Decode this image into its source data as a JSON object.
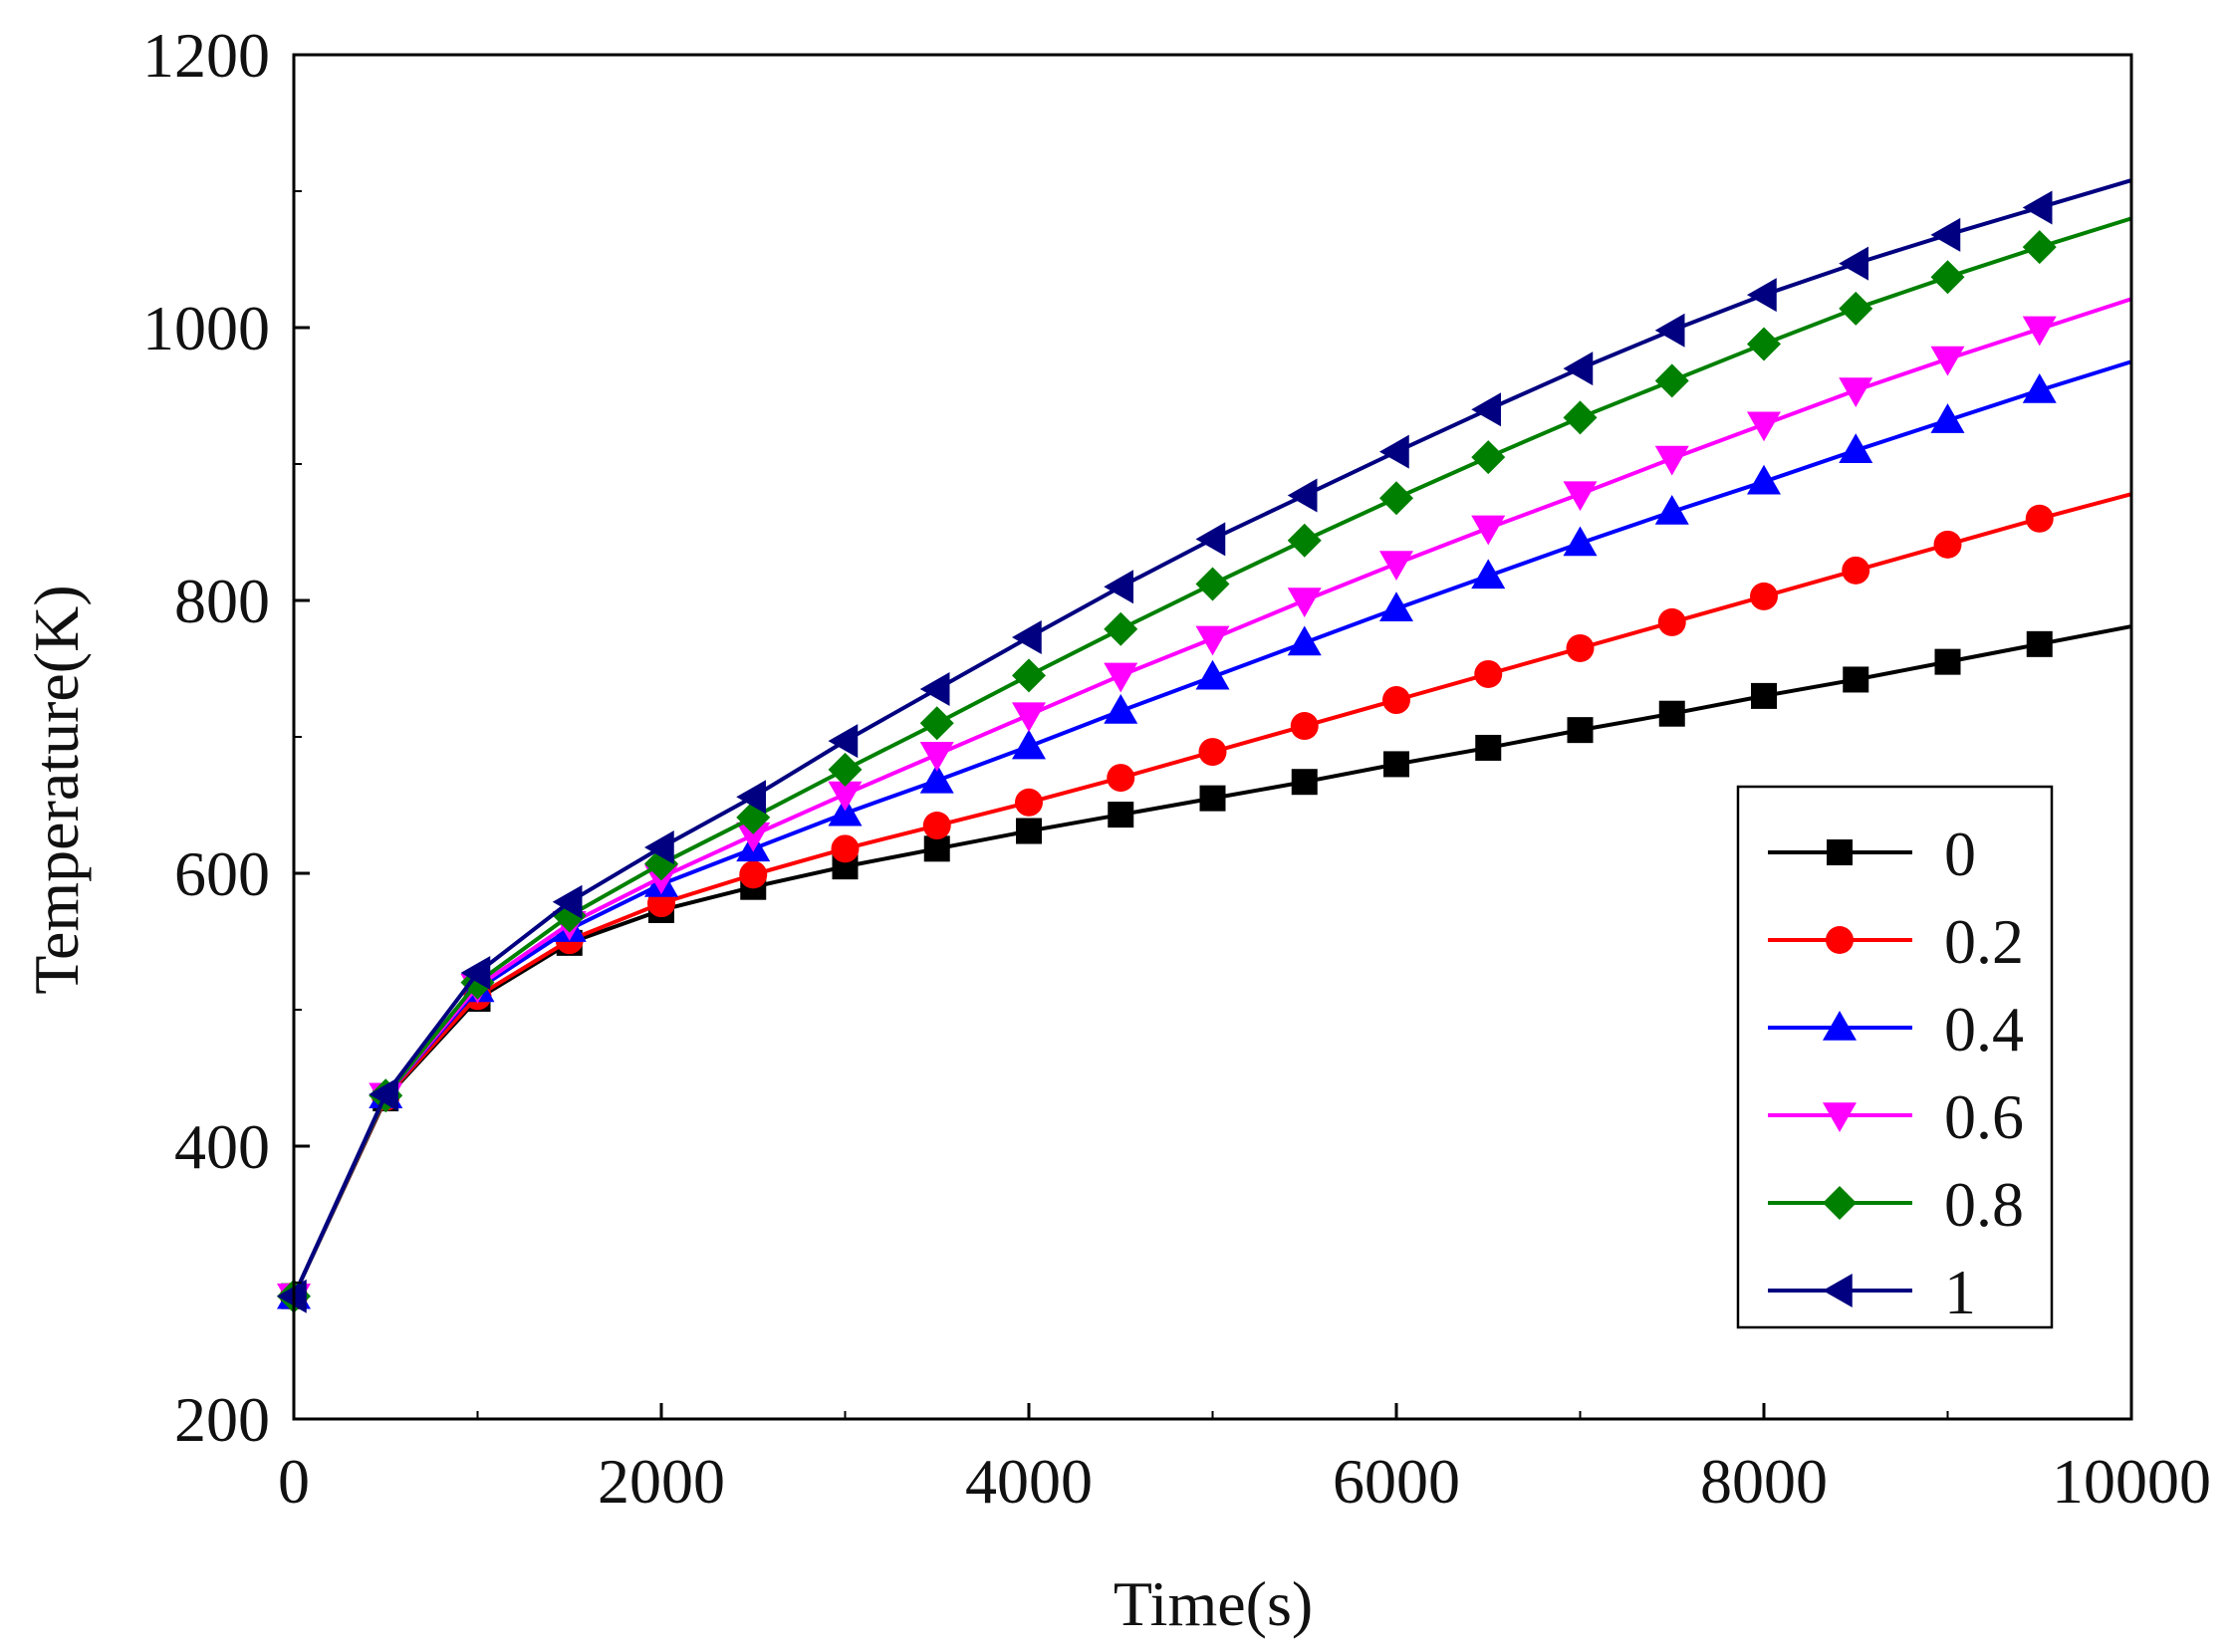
{
  "chart_data": {
    "type": "line",
    "title": "",
    "xlabel": "Time(s)",
    "ylabel": "Temperature(K)",
    "xlim": [
      0,
      10000
    ],
    "ylim": [
      200,
      1200
    ],
    "xticks": [
      0,
      2000,
      4000,
      6000,
      8000,
      10000
    ],
    "yticks": [
      200,
      400,
      600,
      800,
      1000,
      1200
    ],
    "xtick_labels": [
      "0",
      "2000",
      "4000",
      "6000",
      "8000",
      "10000"
    ],
    "ytick_labels": [
      "200",
      "400",
      "600",
      "800",
      "1000",
      "1200"
    ],
    "grid": false,
    "legend_position": "right-middle",
    "x": [
      0,
      500,
      1000,
      1500,
      2000,
      2500,
      3000,
      3500,
      4000,
      4500,
      5000,
      5500,
      6000,
      6500,
      7000,
      7500,
      8000,
      8500,
      9000,
      9500,
      10000
    ],
    "series": [
      {
        "name": "0",
        "color": "#000000",
        "marker": "square",
        "values": [
          290,
          435,
          508,
          549,
          573,
          590,
          605,
          618,
          631,
          643,
          655,
          667,
          680,
          692,
          705,
          717,
          730,
          742,
          755,
          768,
          781
        ]
      },
      {
        "name": "0.2",
        "color": "#ff0000",
        "marker": "circle",
        "values": [
          290,
          436,
          510,
          551,
          578,
          599,
          618,
          635,
          652,
          670,
          689,
          708,
          727,
          746,
          765,
          784,
          803,
          822,
          841,
          860,
          878
        ]
      },
      {
        "name": "0.4",
        "color": "#0000ff",
        "marker": "triangle-up",
        "values": [
          290,
          437,
          515,
          559,
          592,
          618,
          644,
          668,
          693,
          719,
          744,
          769,
          794,
          818,
          842,
          865,
          887,
          910,
          932,
          954,
          975
        ]
      },
      {
        "name": "0.6",
        "color": "#ff00ff",
        "marker": "triangle-down",
        "values": [
          290,
          437,
          517,
          563,
          597,
          628,
          658,
          687,
          716,
          745,
          772,
          800,
          827,
          853,
          878,
          904,
          929,
          954,
          977,
          999,
          1021
        ]
      },
      {
        "name": "0.8",
        "color": "#008000",
        "marker": "diamond",
        "values": [
          290,
          437,
          520,
          569,
          607,
          641,
          676,
          710,
          745,
          779,
          812,
          844,
          875,
          905,
          934,
          961,
          988,
          1014,
          1037,
          1059,
          1080
        ]
      },
      {
        "name": "1",
        "color": "#000080",
        "marker": "triangle-left",
        "values": [
          290,
          438,
          527,
          579,
          619,
          656,
          697,
          735,
          773,
          810,
          845,
          877,
          909,
          940,
          970,
          998,
          1024,
          1047,
          1068,
          1088,
          1108
        ]
      }
    ]
  }
}
